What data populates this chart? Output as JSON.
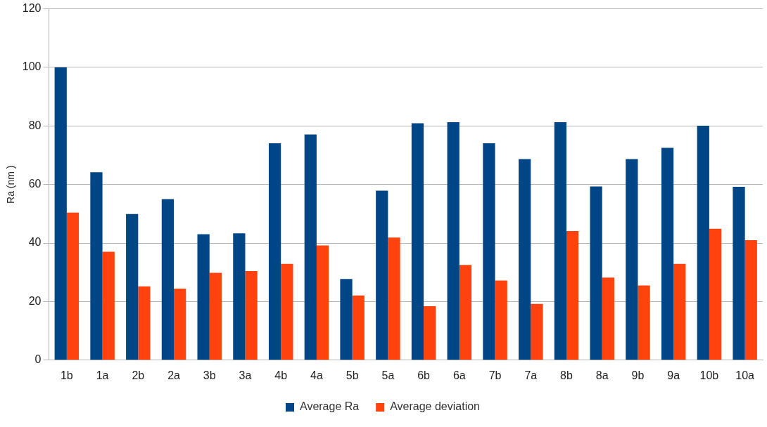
{
  "chart_data": {
    "type": "bar",
    "ylabel": "Ra (nm )",
    "categories": [
      "1b",
      "1a",
      "2b",
      "2a",
      "3b",
      "3a",
      "4b",
      "4a",
      "5b",
      "5a",
      "6b",
      "6a",
      "7b",
      "7a",
      "8b",
      "8a",
      "9b",
      "9a",
      "10b",
      "10a"
    ],
    "series": [
      {
        "name": "Average Ra",
        "color": "#004586",
        "values": [
          100,
          64.2,
          49.9,
          55,
          43,
          43.3,
          74.1,
          77.1,
          27.7,
          57.9,
          80.9,
          81.3,
          74.1,
          68.7,
          81.3,
          59.3,
          68.7,
          72.5,
          80.1,
          59.2
        ]
      },
      {
        "name": "Average deviation",
        "color": "#ff420e",
        "values": [
          50.4,
          37,
          25.2,
          24.4,
          29.8,
          30.4,
          32.9,
          39.2,
          22.1,
          41.9,
          18.4,
          32.5,
          27.2,
          19.2,
          44.1,
          28.2,
          25.5,
          32.9,
          44.9,
          41
        ]
      }
    ],
    "ylim": [
      0,
      120
    ],
    "yticks": [
      0,
      20,
      40,
      60,
      80,
      100,
      120
    ],
    "grid": "y",
    "legend": "bottom"
  }
}
